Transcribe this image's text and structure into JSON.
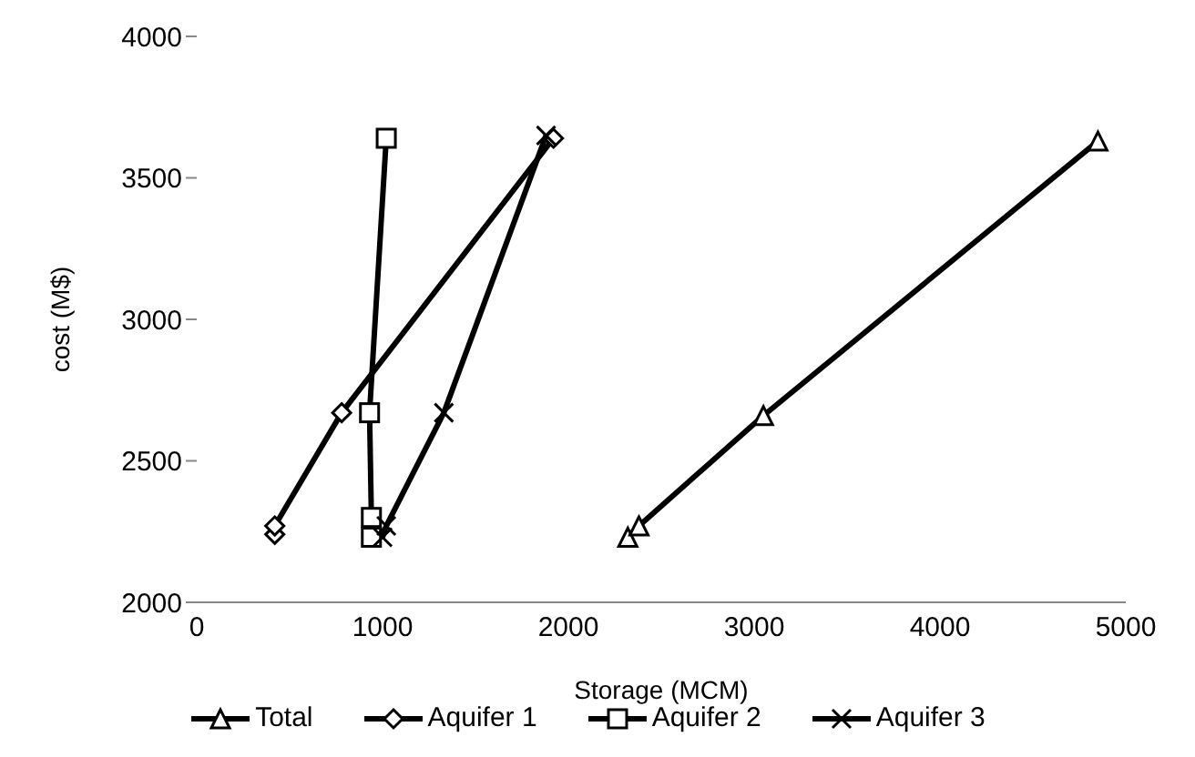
{
  "chart_data": {
    "type": "line",
    "xlabel": "Storage (MCM)",
    "ylabel": "cost  (M$)",
    "xlim": [
      0,
      5000
    ],
    "xticks": [
      0,
      1000,
      2000,
      3000,
      4000,
      5000
    ],
    "ylim": [
      2000,
      4000
    ],
    "yticks": [
      2000,
      2500,
      3000,
      3500,
      4000
    ],
    "grid": false,
    "legend": "bottom",
    "line_style": "solid",
    "series": [
      {
        "name": "Total",
        "color": "#000000",
        "marker": "triangle",
        "x": [
          2320,
          2380,
          3050,
          4850
        ],
        "values": [
          2230,
          2270,
          2660,
          3630
        ]
      },
      {
        "name": "Aquifer 1",
        "color": "#000000",
        "marker": "diamond",
        "x": [
          420,
          420,
          780,
          1920
        ],
        "values": [
          2240,
          2270,
          2670,
          3640
        ]
      },
      {
        "name": "Aquifer 2",
        "color": "#000000",
        "marker": "square",
        "x": [
          940,
          940,
          930,
          1020
        ],
        "values": [
          2230,
          2300,
          2670,
          3640
        ]
      },
      {
        "name": "Aquifer 3",
        "color": "#000000",
        "marker": "cross",
        "x": [
          1000,
          1020,
          1330,
          1880
        ],
        "values": [
          2230,
          2270,
          2670,
          3650
        ]
      }
    ]
  }
}
